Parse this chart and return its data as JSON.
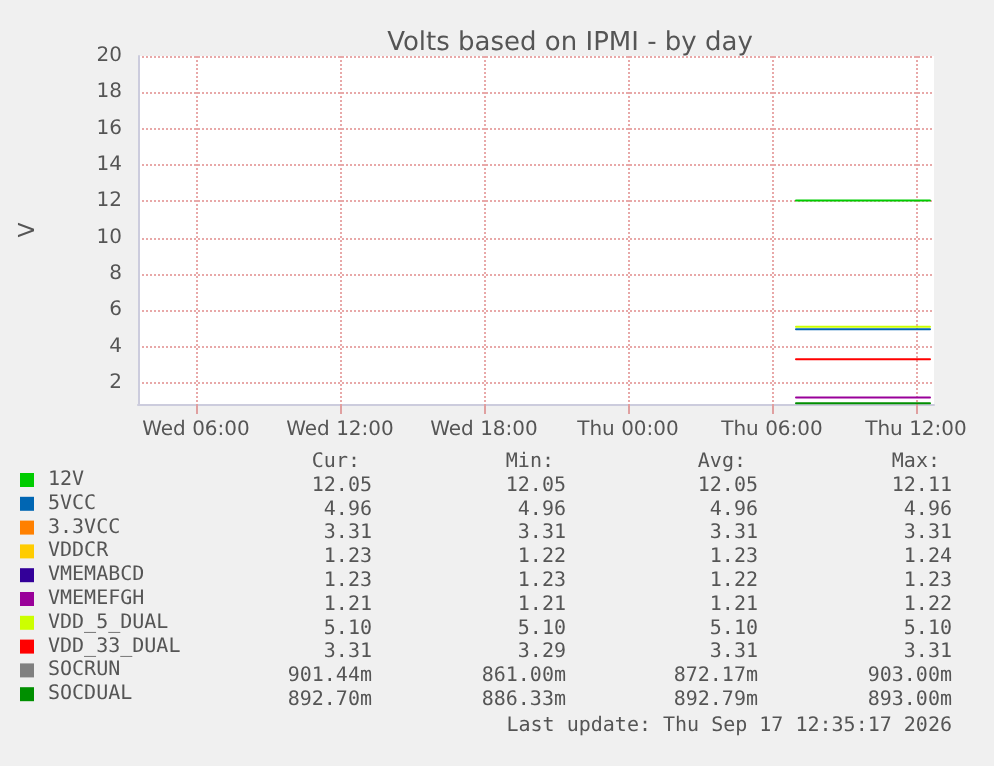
{
  "chart_data": {
    "type": "line",
    "title": "Volts based on IPMI - by day",
    "ylabel": "V",
    "x": [
      "2026-09-17T07:00",
      "2026-09-17T12:35"
    ],
    "series": [
      {
        "name": "12V",
        "color": "#00cc00",
        "values": [
          12.05,
          12.05
        ]
      },
      {
        "name": "5VCC",
        "color": "#0066b3",
        "values": [
          4.96,
          4.96
        ]
      },
      {
        "name": "3.3VCC",
        "color": "#ff8000",
        "values": [
          null,
          null
        ]
      },
      {
        "name": "VDDCR",
        "color": "#ffcc00",
        "values": [
          null,
          null
        ]
      },
      {
        "name": "VMEMABCD",
        "color": "#330099",
        "values": [
          null,
          null
        ]
      },
      {
        "name": "VMEMEFGH",
        "color": "#990099",
        "values": [
          1.21,
          1.21
        ]
      },
      {
        "name": "VDD_5_DUAL",
        "color": "#ccff00",
        "values": [
          5.1,
          5.1
        ]
      },
      {
        "name": "VDD_33_DUAL",
        "color": "#ff0000",
        "values": [
          3.31,
          3.31
        ]
      },
      {
        "name": "SOCRUN",
        "color": "#808080",
        "values": [
          null,
          null
        ]
      },
      {
        "name": "SOCDUAL",
        "color": "#008f00",
        "values": [
          0.89,
          0.89
        ]
      }
    ],
    "xlim": [
      "2026-09-16T03:35",
      "2026-09-17T12:45"
    ],
    "xticks": [
      {
        "value": "2026-09-16T06:00",
        "label": "Wed 06:00"
      },
      {
        "value": "2026-09-16T12:00",
        "label": "Wed 12:00"
      },
      {
        "value": "2026-09-16T18:00",
        "label": "Wed 18:00"
      },
      {
        "value": "2026-09-17T00:00",
        "label": "Thu 00:00"
      },
      {
        "value": "2026-09-17T06:00",
        "label": "Thu 06:00"
      },
      {
        "value": "2026-09-17T12:00",
        "label": "Thu 12:00"
      }
    ],
    "ylim": [
      0.85,
      20
    ],
    "yticks": [
      2,
      4,
      6,
      8,
      10,
      12,
      14,
      16,
      18,
      20
    ],
    "grid": true,
    "legend": "bottom left",
    "marker": "none",
    "line_style": "solid",
    "annotations": [
      "Cur:",
      "Min:",
      "Avg:",
      "Max:",
      "12.05",
      "12.05",
      "12.05",
      "12.11",
      "4.96",
      "4.96",
      "4.96",
      "4.96",
      "3.31",
      "3.31",
      "3.31",
      "3.31",
      "1.23",
      "1.22",
      "1.23",
      "1.24",
      "1.23",
      "1.23",
      "1.22",
      "1.23",
      "1.21",
      "1.21",
      "1.21",
      "1.22",
      "5.10",
      "5.10",
      "5.10",
      "5.10",
      "3.31",
      "3.29",
      "3.31",
      "3.31",
      "901.44m",
      "861.00m",
      "872.17m",
      "903.00m",
      "892.70m",
      "886.33m",
      "892.79m",
      "893.00m",
      "Last update: Thu Sep 17 12:35:17 2026"
    ]
  }
}
